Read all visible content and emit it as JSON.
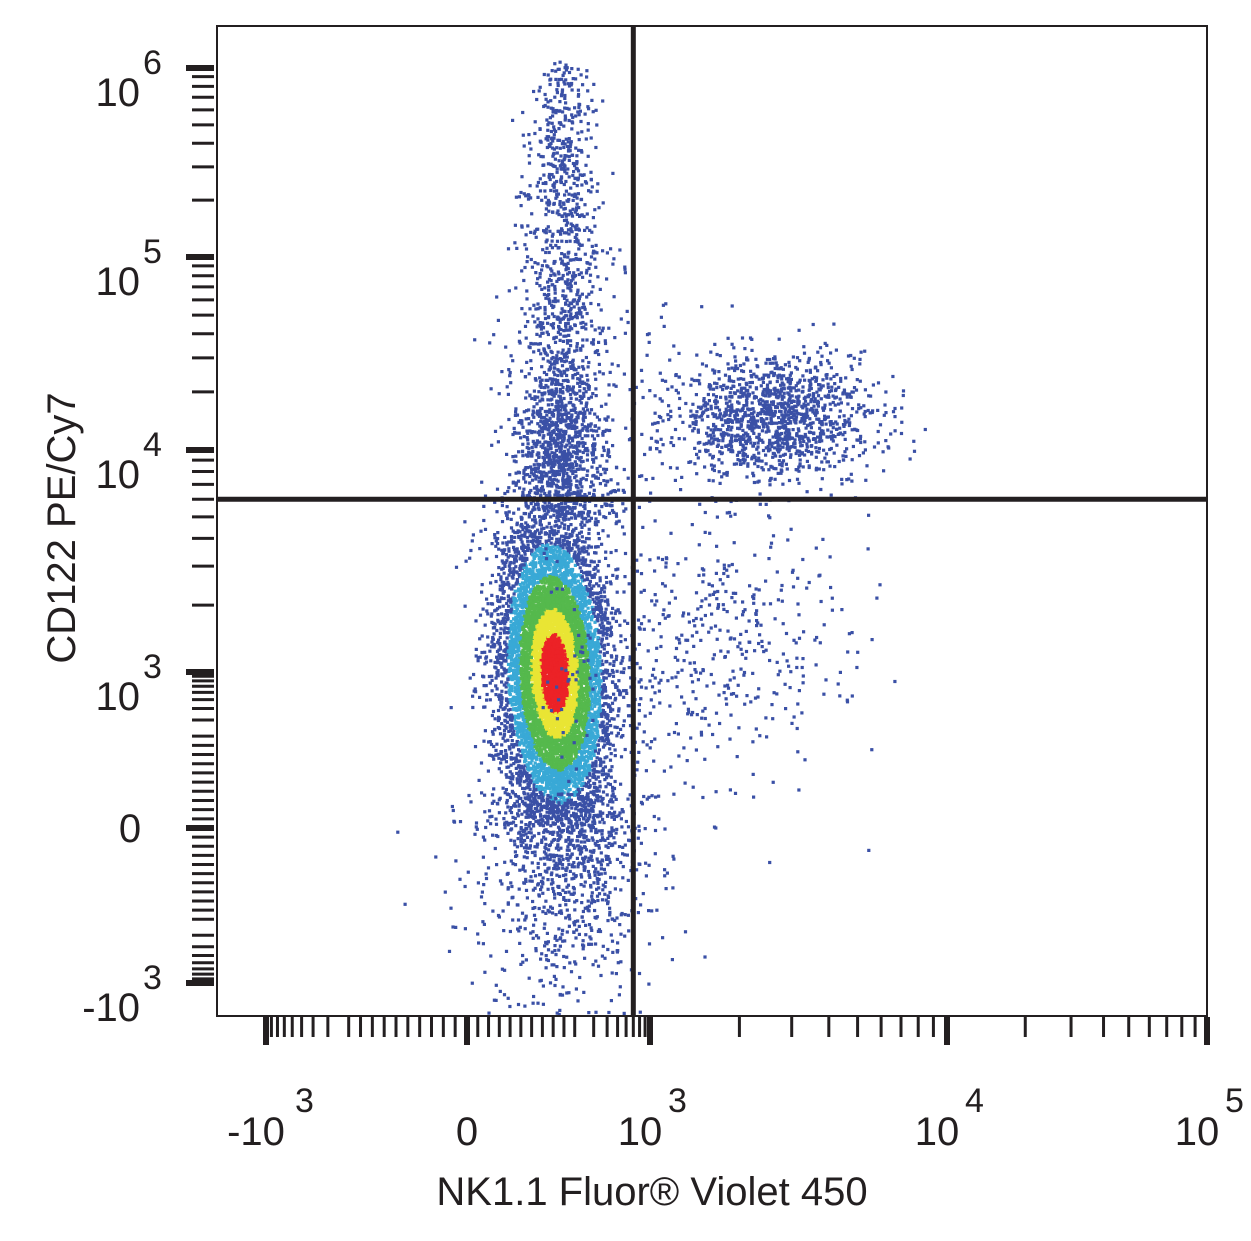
{
  "chart_data": {
    "type": "scatter",
    "subtype": "flow-cytometry density dot plot",
    "xlabel": "NK1.1 Fluor® Violet 450",
    "ylabel": "CD122 PE/Cy7",
    "x_scale": "biexponential",
    "y_scale": "biexponential",
    "x_ticks": [
      {
        "base": "-10",
        "exp": "3",
        "value": -1000
      },
      {
        "base": "0",
        "exp": "",
        "value": 0
      },
      {
        "base": "10",
        "exp": "3",
        "value": 1000
      },
      {
        "base": "10",
        "exp": "4",
        "value": 10000
      },
      {
        "base": "10",
        "exp": "5",
        "value": 100000
      }
    ],
    "y_ticks": [
      {
        "base": "-10",
        "exp": "3",
        "value": -1000
      },
      {
        "base": "0",
        "exp": "",
        "value": 0
      },
      {
        "base": "10",
        "exp": "3",
        "value": 1000
      },
      {
        "base": "10",
        "exp": "4",
        "value": 10000
      },
      {
        "base": "10",
        "exp": "5",
        "value": 100000
      },
      {
        "base": "10",
        "exp": "6",
        "value": 1000000
      }
    ],
    "gates": {
      "vertical_x": 700,
      "horizontal_y": 6000
    },
    "populations": [
      {
        "name_visible": false,
        "center_x": 160,
        "center_y": 1000,
        "density": "high"
      },
      {
        "name_visible": false,
        "center_x": 160,
        "center_y": 15000,
        "density": "low"
      },
      {
        "name_visible": false,
        "center_x": 2600,
        "center_y": 15000,
        "density": "medium"
      },
      {
        "name_visible": false,
        "center_x": 2000,
        "center_y": 1500,
        "density": "low"
      }
    ],
    "grid": false,
    "legend": "none",
    "colors": {
      "density_low": "#3a50a6",
      "density_mid_low": "#39a9d6",
      "density_mid": "#55b94d",
      "density_mid_high": "#e9e534",
      "density_high": "#ec2227",
      "gate_line": "#231f20",
      "axis": "#231f20"
    }
  }
}
